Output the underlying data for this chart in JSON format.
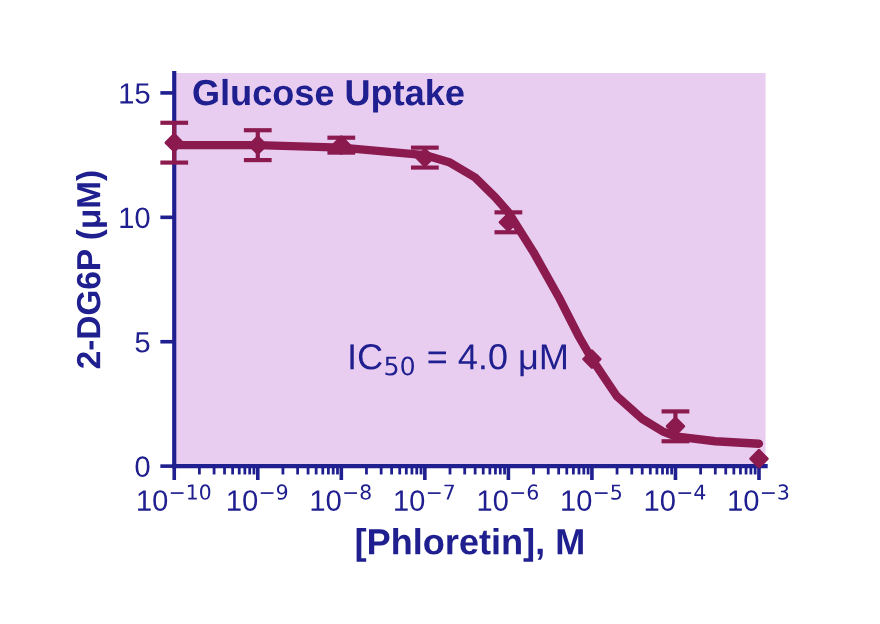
{
  "chart_data": {
    "type": "scatter",
    "title": "Glucose Uptake",
    "xlabel": "[Phloretin], M",
    "ylabel": "2-DG6P (μM)",
    "annotations": [
      "IC$_{50}$ = 4.0 μM"
    ],
    "log": "x",
    "xlim": [
      1e-10,
      0.0012
    ],
    "ylim": [
      0,
      15.8
    ],
    "xticks": [
      {
        "value": 1e-10,
        "label": "10$^{−10}$"
      },
      {
        "value": 1e-09,
        "label": "10$^{−9}$"
      },
      {
        "value": 1e-08,
        "label": "10$^{−8}$"
      },
      {
        "value": 1e-07,
        "label": "10$^{−7}$"
      },
      {
        "value": 1e-06,
        "label": "10$^{−6}$"
      },
      {
        "value": 1e-05,
        "label": "10$^{−5}$"
      },
      {
        "value": 0.0001,
        "label": "10$^{−4}$"
      },
      {
        "value": 0.001,
        "label": "10$^{−3}$"
      }
    ],
    "yticks": [
      0,
      5,
      10,
      15
    ],
    "grid": false,
    "series": [
      {
        "marker": "diamond",
        "color": "#8b1a4f",
        "x": [
          1e-10,
          1e-09,
          1e-08,
          1e-07,
          1e-06,
          1e-05,
          0.0001,
          0.001
        ],
        "values": [
          13.0,
          12.9,
          12.9,
          12.4,
          9.8,
          4.3,
          1.6,
          0.3
        ],
        "errors": [
          0.8,
          0.6,
          0.3,
          0.4,
          0.4,
          null,
          0.6,
          null
        ]
      },
      {
        "type": "line",
        "marker": "none",
        "color": "#8b1a4f",
        "x": [
          1e-10,
          1e-09,
          1e-08,
          1e-07,
          2e-07,
          4e-07,
          7e-07,
          1e-06,
          2e-06,
          4e-06,
          7e-06,
          1e-05,
          2e-05,
          4e-05,
          7e-05,
          0.0001,
          0.0003,
          0.001
        ],
        "values": [
          12.9,
          12.9,
          12.8,
          12.5,
          12.2,
          11.6,
          10.8,
          10.2,
          8.6,
          6.8,
          5.2,
          4.3,
          2.8,
          1.9,
          1.4,
          1.2,
          1.0,
          0.9
        ]
      }
    ]
  }
}
